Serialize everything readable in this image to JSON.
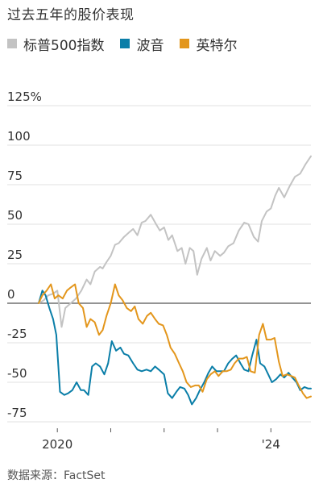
{
  "title": "过去五年的股价表现",
  "source": "数据来源：FactSet",
  "colors": {
    "sp500": "#c3c3c3",
    "boeing": "#0a7ea8",
    "intel": "#e3961c",
    "zero_line": "#555555",
    "grid": "#e2e2e2"
  },
  "chart_data": {
    "type": "line",
    "title": "过去五年的股价表现",
    "xlabel": "",
    "ylabel": "",
    "x_ticks": [
      "2020",
      "'24"
    ],
    "y_ticks": [
      {
        "value": 125,
        "label": "125%"
      },
      {
        "value": 100,
        "label": "100"
      },
      {
        "value": 75,
        "label": "75"
      },
      {
        "value": 50,
        "label": "50"
      },
      {
        "value": 25,
        "label": "25"
      },
      {
        "value": 0,
        "label": "0"
      },
      {
        "value": -25,
        "label": "-25"
      },
      {
        "value": -50,
        "label": "-50"
      },
      {
        "value": -75,
        "label": "-75"
      }
    ],
    "ylim": [
      -75,
      125
    ],
    "xlim": [
      2019.65,
      2024.75
    ],
    "grid": true,
    "legend": "top",
    "series": [
      {
        "name": "标普500指数",
        "key": "sp500",
        "x": [
          2019.65,
          2019.75,
          2019.83,
          2019.92,
          2020.0,
          2020.08,
          2020.15,
          2020.25,
          2020.35,
          2020.45,
          2020.55,
          2020.62,
          2020.7,
          2020.8,
          2020.85,
          2020.92,
          2021.0,
          2021.08,
          2021.15,
          2021.25,
          2021.35,
          2021.42,
          2021.5,
          2021.58,
          2021.65,
          2021.75,
          2021.85,
          2021.92,
          2022.0,
          2022.08,
          2022.15,
          2022.25,
          2022.33,
          2022.4,
          2022.48,
          2022.55,
          2022.62,
          2022.7,
          2022.8,
          2022.87,
          2022.95,
          2023.05,
          2023.12,
          2023.2,
          2023.3,
          2023.4,
          2023.5,
          2023.58,
          2023.68,
          2023.76,
          2023.83,
          2023.92,
          2024.0,
          2024.08,
          2024.15,
          2024.25,
          2024.35,
          2024.45,
          2024.55,
          2024.65,
          2024.75
        ],
        "values": [
          0,
          2,
          5,
          6,
          8,
          -15,
          -3,
          0,
          3,
          8,
          15,
          12,
          20,
          23,
          22,
          26,
          30,
          37,
          38,
          42,
          45,
          47,
          43,
          51,
          52,
          56,
          50,
          46,
          48,
          40,
          43,
          33,
          35,
          25,
          35,
          33,
          18,
          28,
          35,
          27,
          33,
          30,
          32,
          36,
          38,
          46,
          51,
          50,
          42,
          39,
          52,
          58,
          60,
          68,
          73,
          67,
          74,
          80,
          82,
          88,
          93
        ]
      },
      {
        "name": "波音",
        "key": "boeing",
        "x": [
          2019.65,
          2019.72,
          2019.78,
          2019.85,
          2019.92,
          2019.98,
          2020.05,
          2020.13,
          2020.2,
          2020.28,
          2020.36,
          2020.44,
          2020.5,
          2020.58,
          2020.65,
          2020.72,
          2020.8,
          2020.88,
          2020.95,
          2021.02,
          2021.1,
          2021.18,
          2021.25,
          2021.33,
          2021.42,
          2021.5,
          2021.58,
          2021.67,
          2021.75,
          2021.83,
          2021.9,
          2022.0,
          2022.07,
          2022.15,
          2022.23,
          2022.3,
          2022.38,
          2022.45,
          2022.52,
          2022.6,
          2022.67,
          2022.75,
          2022.83,
          2022.9,
          2022.98,
          2023.05,
          2023.12,
          2023.2,
          2023.28,
          2023.35,
          2023.43,
          2023.5,
          2023.58,
          2023.65,
          2023.73,
          2023.8,
          2023.88,
          2023.95,
          2024.02,
          2024.1,
          2024.18,
          2024.25,
          2024.33,
          2024.4,
          2024.48,
          2024.55,
          2024.63,
          2024.7,
          2024.75
        ],
        "values": [
          0,
          8,
          5,
          -3,
          -10,
          -20,
          -56,
          -58,
          -57,
          -55,
          -50,
          -55,
          -55,
          -58,
          -40,
          -38,
          -40,
          -45,
          -38,
          -24,
          -30,
          -28,
          -32,
          -33,
          -38,
          -42,
          -43,
          -42,
          -43,
          -40,
          -42,
          -45,
          -57,
          -60,
          -56,
          -53,
          -54,
          -58,
          -64,
          -60,
          -55,
          -50,
          -44,
          -40,
          -43,
          -43,
          -43,
          -38,
          -35,
          -33,
          -38,
          -42,
          -43,
          -33,
          -23,
          -38,
          -40,
          -45,
          -50,
          -48,
          -45,
          -47,
          -44,
          -47,
          -50,
          -55,
          -53,
          -54,
          -54
        ]
      },
      {
        "name": "英特尔",
        "key": "intel",
        "x": [
          2019.65,
          2019.72,
          2019.8,
          2019.88,
          2019.95,
          2020.02,
          2020.1,
          2020.18,
          2020.25,
          2020.33,
          2020.4,
          2020.48,
          2020.55,
          2020.62,
          2020.7,
          2020.78,
          2020.85,
          2020.92,
          2021.0,
          2021.08,
          2021.15,
          2021.22,
          2021.3,
          2021.38,
          2021.45,
          2021.52,
          2021.6,
          2021.68,
          2021.75,
          2021.83,
          2021.9,
          2021.98,
          2022.05,
          2022.12,
          2022.2,
          2022.28,
          2022.35,
          2022.42,
          2022.5,
          2022.58,
          2022.65,
          2022.72,
          2022.8,
          2022.87,
          2022.95,
          2023.02,
          2023.1,
          2023.17,
          2023.25,
          2023.32,
          2023.4,
          2023.48,
          2023.55,
          2023.62,
          2023.7,
          2023.78,
          2023.85,
          2023.92,
          2024.0,
          2024.07,
          2024.15,
          2024.22,
          2024.3,
          2024.38,
          2024.45,
          2024.52,
          2024.6,
          2024.67,
          2024.75
        ],
        "values": [
          0,
          5,
          8,
          12,
          3,
          5,
          3,
          8,
          10,
          12,
          0,
          -3,
          -15,
          -10,
          -12,
          -20,
          -17,
          -8,
          0,
          12,
          5,
          2,
          -3,
          -5,
          -2,
          -10,
          -13,
          -8,
          -6,
          -10,
          -13,
          -14,
          -20,
          -28,
          -32,
          -38,
          -43,
          -50,
          -53,
          -52,
          -52,
          -56,
          -48,
          -45,
          -43,
          -46,
          -43,
          -43,
          -42,
          -38,
          -35,
          -35,
          -34,
          -43,
          -44,
          -20,
          -13,
          -23,
          -23,
          -22,
          -37,
          -46,
          -45,
          -46,
          -47,
          -52,
          -57,
          -60,
          -59
        ]
      }
    ]
  }
}
